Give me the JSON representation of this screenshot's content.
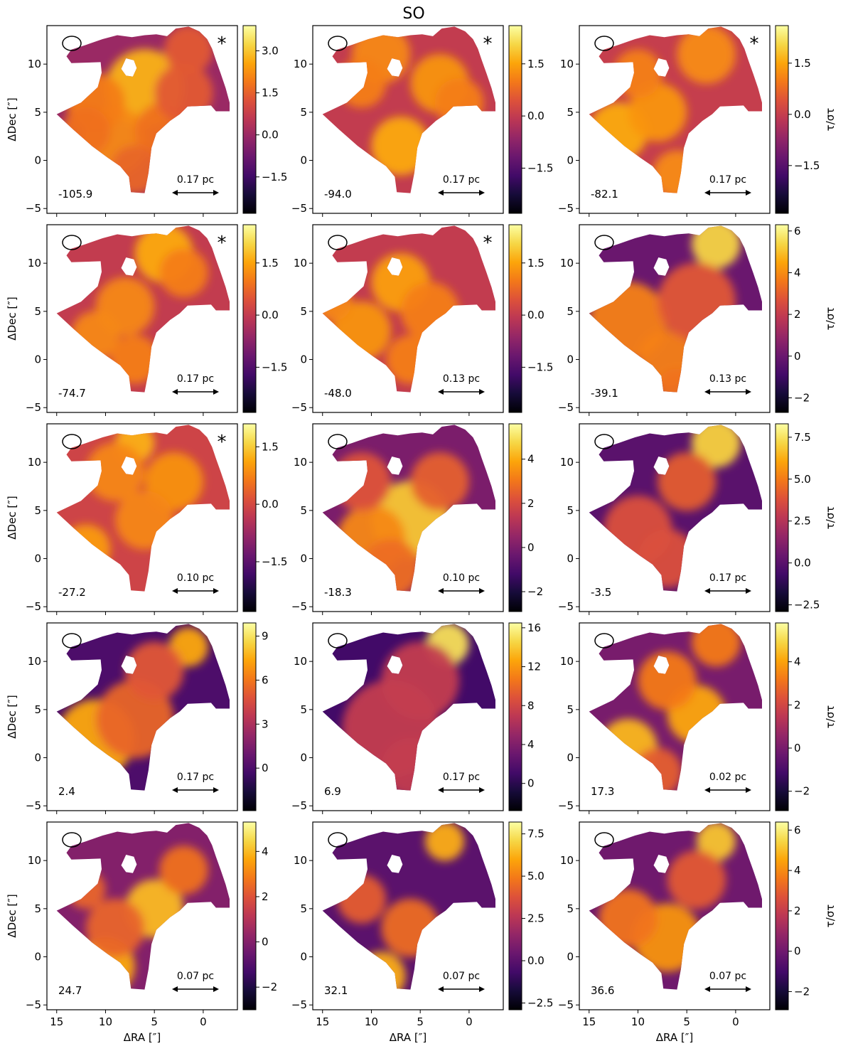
{
  "figure": {
    "title": "SO",
    "x_axis_label": "ΔRA [″]",
    "y_axis_label": "ΔDec [″]",
    "colorbar_label": "τ/στ",
    "colormap": "inferno",
    "x_ticks": [
      "15",
      "10",
      "5",
      "0"
    ],
    "y_ticks": [
      "10",
      "5",
      "0",
      "−5"
    ]
  },
  "chart_data": {
    "type": "heatmap",
    "xlim": [
      16,
      -3.5
    ],
    "ylim": [
      -5.5,
      14
    ],
    "x_tick_values": [
      15,
      10,
      5,
      0
    ],
    "y_tick_values": [
      10,
      5,
      0,
      -5
    ],
    "panels": [
      {
        "velocity": "-105.9",
        "scale": "0.17 pc",
        "flag": "*",
        "cbar_min": -2.8,
        "cbar_max": 3.9,
        "ticks": [
          3.0,
          1.5,
          0.0,
          -1.5
        ],
        "tick_labels": [
          "3.0",
          "1.5",
          "0.0",
          "−1.5"
        ]
      },
      {
        "velocity": "-94.0",
        "scale": "0.17 pc",
        "flag": "*",
        "cbar_min": -2.8,
        "cbar_max": 2.6,
        "ticks": [
          1.5,
          0.0,
          -1.5
        ],
        "tick_labels": [
          "1.5",
          "0.0",
          "−1.5"
        ]
      },
      {
        "velocity": "-82.1",
        "scale": "0.17 pc",
        "flag": "*",
        "cbar_min": -2.9,
        "cbar_max": 2.6,
        "ticks": [
          1.5,
          0.0,
          -1.5
        ],
        "tick_labels": [
          "1.5",
          "0.0",
          "−1.5"
        ]
      },
      {
        "velocity": "-74.7",
        "scale": "0.17 pc",
        "flag": "*",
        "cbar_min": -2.8,
        "cbar_max": 2.6,
        "ticks": [
          1.5,
          0.0,
          -1.5
        ],
        "tick_labels": [
          "1.5",
          "0.0",
          "−1.5"
        ]
      },
      {
        "velocity": "-48.0",
        "scale": "0.13 pc",
        "flag": "*",
        "cbar_min": -2.8,
        "cbar_max": 2.6,
        "ticks": [
          1.5,
          0.0,
          -1.5
        ],
        "tick_labels": [
          "1.5",
          "0.0",
          "−1.5"
        ]
      },
      {
        "velocity": "-39.1",
        "scale": "0.13 pc",
        "flag": "",
        "cbar_min": -2.7,
        "cbar_max": 6.3,
        "ticks": [
          6,
          4,
          2,
          0,
          -2
        ],
        "tick_labels": [
          "6",
          "4",
          "2",
          "0",
          "−2"
        ]
      },
      {
        "velocity": "-27.2",
        "scale": "0.10 pc",
        "flag": "*",
        "cbar_min": -2.8,
        "cbar_max": 2.1,
        "ticks": [
          1.5,
          0.0,
          -1.5
        ],
        "tick_labels": [
          "1.5",
          "0.0",
          "−1.5"
        ]
      },
      {
        "velocity": "-18.3",
        "scale": "0.10 pc",
        "flag": "",
        "cbar_min": -2.9,
        "cbar_max": 5.6,
        "ticks": [
          4,
          2,
          0,
          -2
        ],
        "tick_labels": [
          "4",
          "2",
          "0",
          "−2"
        ]
      },
      {
        "velocity": "-3.5",
        "scale": "0.17 pc",
        "flag": "",
        "cbar_min": -2.9,
        "cbar_max": 8.3,
        "ticks": [
          7.5,
          5.0,
          2.5,
          0.0,
          -2.5
        ],
        "tick_labels": [
          "7.5",
          "5.0",
          "2.5",
          "0.0",
          "−2.5"
        ]
      },
      {
        "velocity": "2.4",
        "scale": "0.17 pc",
        "flag": "",
        "cbar_min": -2.9,
        "cbar_max": 9.9,
        "ticks": [
          9,
          6,
          3,
          0
        ],
        "tick_labels": [
          "9",
          "6",
          "3",
          "0"
        ]
      },
      {
        "velocity": "6.9",
        "scale": "0.17 pc",
        "flag": "",
        "cbar_min": -2.8,
        "cbar_max": 16.5,
        "ticks": [
          16,
          12,
          8,
          4,
          0
        ],
        "tick_labels": [
          "16",
          "12",
          "8",
          "4",
          "0"
        ]
      },
      {
        "velocity": "17.3",
        "scale": "0.02 pc",
        "flag": "",
        "cbar_min": -2.9,
        "cbar_max": 5.8,
        "ticks": [
          4,
          2,
          0,
          -2
        ],
        "tick_labels": [
          "4",
          "2",
          "0",
          "−2"
        ]
      },
      {
        "velocity": "24.7",
        "scale": "0.07 pc",
        "flag": "",
        "cbar_min": -3.0,
        "cbar_max": 5.3,
        "ticks": [
          4,
          2,
          0,
          -2
        ],
        "tick_labels": [
          "4",
          "2",
          "0",
          "−2"
        ]
      },
      {
        "velocity": "32.1",
        "scale": "0.07 pc",
        "flag": "",
        "cbar_min": -2.9,
        "cbar_max": 8.2,
        "ticks": [
          7.5,
          5.0,
          2.5,
          0.0,
          -2.5
        ],
        "tick_labels": [
          "7.5",
          "5.0",
          "2.5",
          "0.0",
          "−2.5"
        ]
      },
      {
        "velocity": "36.6",
        "scale": "0.07 pc",
        "flag": "",
        "cbar_min": -2.9,
        "cbar_max": 6.4,
        "ticks": [
          6,
          4,
          2,
          0,
          -2
        ],
        "tick_labels": [
          "6",
          "4",
          "2",
          "0",
          "−2"
        ]
      }
    ]
  }
}
